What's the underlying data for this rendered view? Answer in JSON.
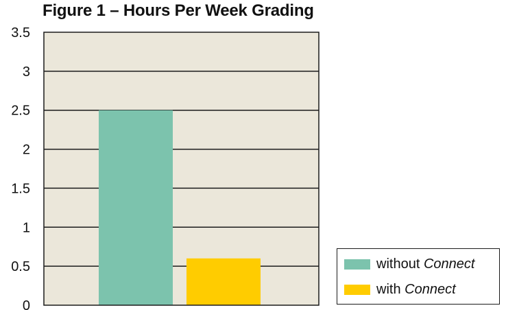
{
  "chart_data": {
    "type": "bar",
    "title": "Figure 1 – Hours Per Week Grading",
    "xlabel": "",
    "ylabel": "",
    "ylim": [
      0,
      3.5
    ],
    "yticks": [
      "0",
      "0.5",
      "1",
      "1.5",
      "2",
      "2.5",
      "3",
      "3.5"
    ],
    "grid": true,
    "legend_position": "bottom-right",
    "plot_background": "#ebe7da",
    "series": [
      {
        "name_prefix": "without",
        "name_emphasis": "Connect",
        "value": 2.5,
        "color": "#7cc3ad"
      },
      {
        "name_prefix": "with",
        "name_emphasis": "Connect",
        "value": 0.6,
        "color": "#ffcc00"
      }
    ]
  }
}
